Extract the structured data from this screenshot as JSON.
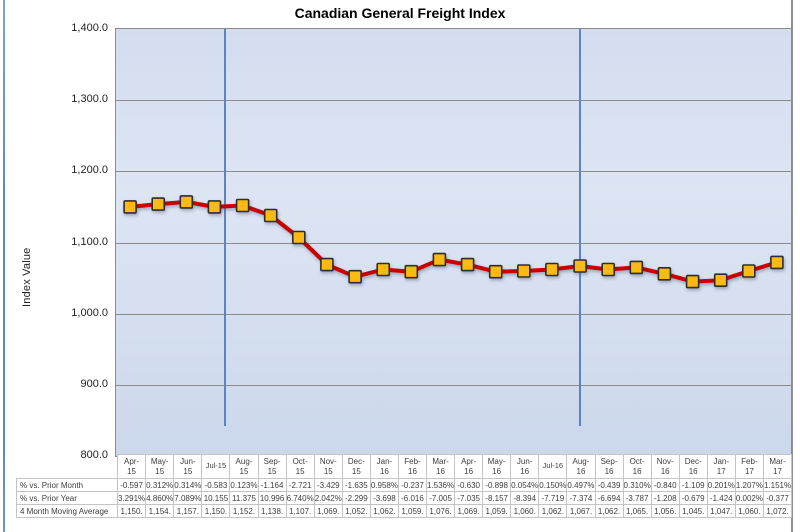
{
  "chart_data": {
    "type": "line",
    "title": "Canadian General Freight Index",
    "xlabel": "",
    "ylabel": "Index Value",
    "ylim": [
      800,
      1400
    ],
    "ytick_step": 100,
    "ytick_labels": [
      "1,400.0",
      "1,300.0",
      "1,200.0",
      "1,100.0",
      "1,000.0",
      "900.0",
      "800.0"
    ],
    "grid": "horizontal-major",
    "legend": "none",
    "plot_bg": "gradient-light-blue",
    "categories": [
      "Apr-15",
      "May-15",
      "Jun-15",
      "Jul-15",
      "Aug-15",
      "Sep-15",
      "Oct-15",
      "Nov-15",
      "Dec-15",
      "Jan-16",
      "Feb-16",
      "Mar-16",
      "Apr-16",
      "May-16",
      "Jun-16",
      "Jul-16",
      "Aug-16",
      "Sep-16",
      "Oct-16",
      "Nov-16",
      "Dec-16",
      "Jan-17",
      "Feb-17",
      "Mar-17"
    ],
    "series": [
      {
        "name": "4 Month Moving Average",
        "values": [
          1150,
          1154,
          1157,
          1150,
          1152,
          1138,
          1107,
          1069,
          1052,
          1062,
          1059,
          1076,
          1069,
          1059,
          1060,
          1062,
          1067,
          1062,
          1065,
          1056,
          1045,
          1047,
          1060,
          1072
        ],
        "line_color": "#c80000",
        "marker": "square",
        "marker_fill": "#fdba12",
        "marker_stroke": "#2e2e2e"
      }
    ],
    "vertical_reference_lines": {
      "color": "#5b84c4",
      "category_index_positions": [
        3.38,
        16.0
      ]
    }
  },
  "table": {
    "row_headers": [
      "% vs. Prior Month",
      "% vs. Prior Year",
      "4 Month Moving Average"
    ],
    "rows": [
      [
        "-0.597",
        "0.312%",
        "0.314%",
        "-0.583",
        "0.123%",
        "-1.164",
        "-2.721",
        "-3.429",
        "-1.635",
        "0.958%",
        "-0.237",
        "1.536%",
        "-0.630",
        "-0.898",
        "0.054%",
        "0.150%",
        "0.497%",
        "-0.439",
        "0.310%",
        "-0.840",
        "-1.109",
        "0.201%",
        "1.207%",
        "1.151%"
      ],
      [
        "3.291%",
        "4.860%",
        "7.089%",
        "10.155",
        "11.375",
        "10.996",
        "6.740%",
        "2.042%",
        "-2.299",
        "-3.698",
        "-6.016",
        "-7.005",
        "-7.035",
        "-8.157",
        "-8.394",
        "-7.719",
        "-7.374",
        "-6.694",
        "-3.787",
        "-1.208",
        "-0.679",
        "-1.424",
        "0.002%",
        "-0.377"
      ],
      [
        "1,150.",
        "1,154.",
        "1,157.",
        "1,150.",
        "1,152.",
        "1,138.",
        "1,107.",
        "1,069.",
        "1,052.",
        "1,062.",
        "1,059.",
        "1,076.",
        "1,069.",
        "1,059.",
        "1,060.",
        "1,062.",
        "1,067.",
        "1,062.",
        "1,065.",
        "1,056.",
        "1,045.",
        "1,047.",
        "1,060.",
        "1,072."
      ]
    ]
  },
  "colors": {
    "gridline": "#8b8b8b",
    "vertical_line": "#5b84c4",
    "series_line": "#c80000",
    "marker": "#fdba12",
    "left_edge": "#5b87c5",
    "right_edge": "#8f8f8f"
  }
}
